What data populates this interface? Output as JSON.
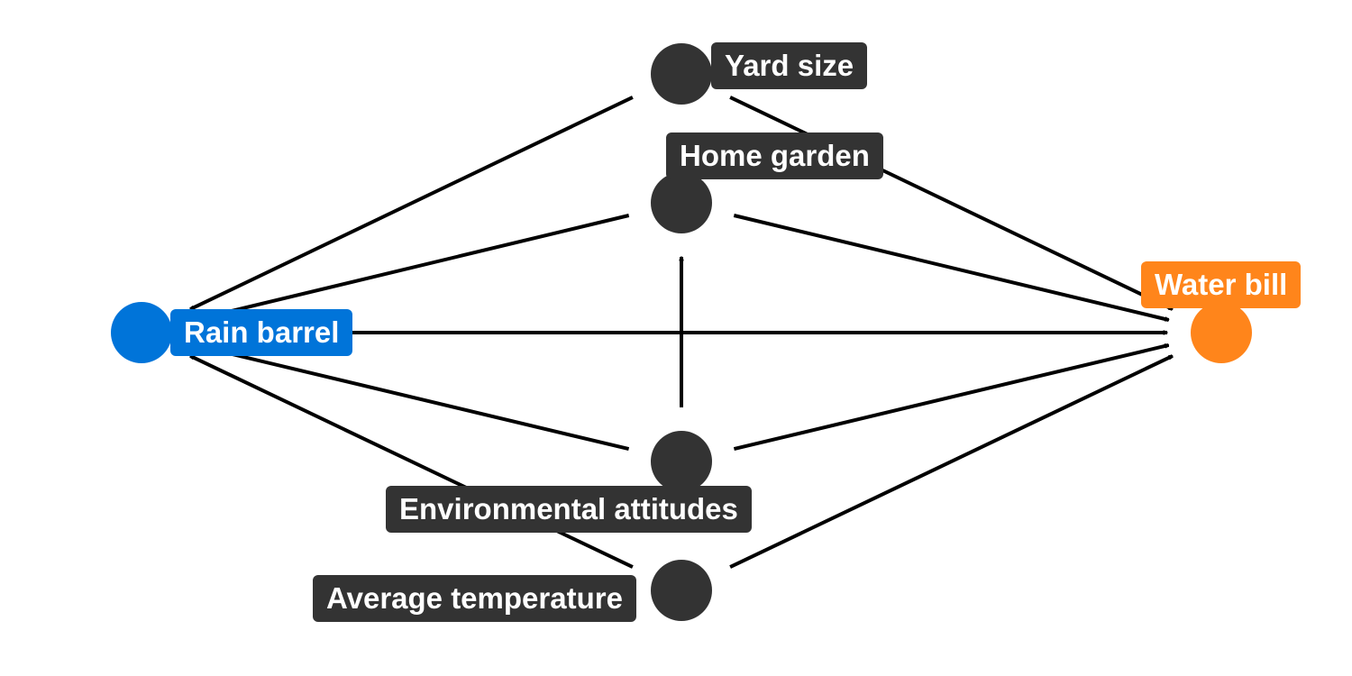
{
  "colors": {
    "exposure": "#0074d9",
    "outcome": "#ff851b",
    "confounder": "#333333",
    "edge": "#000000",
    "label_text": "#ffffff"
  },
  "nodes": {
    "yard_size": {
      "label": "Yard size",
      "role": "confounder"
    },
    "home_garden": {
      "label": "Home garden",
      "role": "confounder"
    },
    "rain_barrel": {
      "label": "Rain barrel",
      "role": "exposure"
    },
    "water_bill": {
      "label": "Water bill",
      "role": "outcome"
    },
    "environmental_attitudes": {
      "label": "Environmental attitudes",
      "role": "confounder"
    },
    "average_temperature": {
      "label": "Average temperature",
      "role": "confounder"
    }
  },
  "edges": [
    {
      "from": "yard_size",
      "to": "rain_barrel"
    },
    {
      "from": "yard_size",
      "to": "water_bill"
    },
    {
      "from": "home_garden",
      "to": "rain_barrel"
    },
    {
      "from": "home_garden",
      "to": "water_bill"
    },
    {
      "from": "rain_barrel",
      "to": "water_bill"
    },
    {
      "from": "environmental_attitudes",
      "to": "rain_barrel"
    },
    {
      "from": "environmental_attitudes",
      "to": "water_bill"
    },
    {
      "from": "environmental_attitudes",
      "to": "home_garden"
    },
    {
      "from": "average_temperature",
      "to": "rain_barrel"
    },
    {
      "from": "average_temperature",
      "to": "water_bill"
    }
  ]
}
